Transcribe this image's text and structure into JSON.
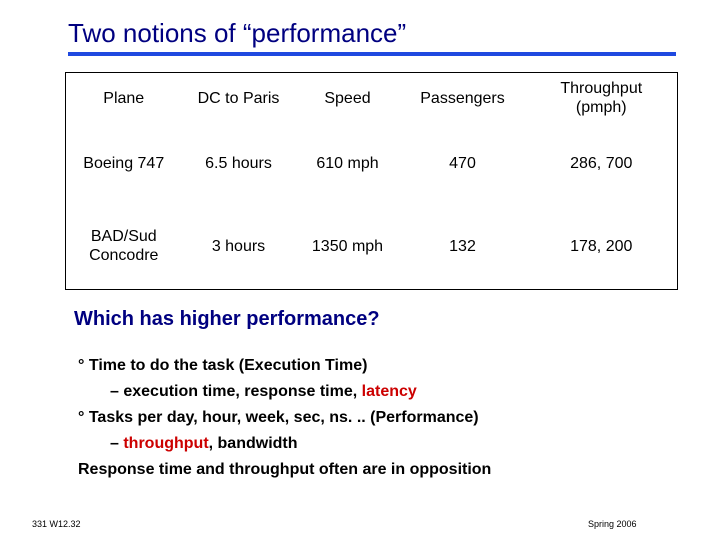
{
  "slide": {
    "title": "Two notions of “performance”",
    "accent_color": "#1f49e0",
    "title_color": "#000080"
  },
  "table": {
    "headers": [
      "Plane",
      "DC to Paris",
      "Speed",
      "Passengers",
      "Throughput (pmph)"
    ],
    "rows": [
      [
        "Boeing 747",
        "6.5 hours",
        "610 mph",
        "470",
        "286, 700"
      ],
      [
        "BAD/Sud Concodre",
        "3 hours",
        "1350 mph",
        "132",
        "178, 200"
      ]
    ]
  },
  "question": "Which has higher performance?",
  "bullets": {
    "b1": "° Time to do the task  (Execution Time)",
    "b1_sub_prefix": "– execution time, response time, ",
    "b1_sub_red": "latency",
    "b2": "° Tasks per day, hour, week, sec, ns. .. (Performance)",
    "b2_sub_prefix": "– ",
    "b2_sub_red": "throughput",
    "b2_sub_suffix": ", bandwidth",
    "b3": "Response time and throughput often are in opposition"
  },
  "footer": {
    "left": "331  W12.32",
    "right": "Spring 2006"
  }
}
